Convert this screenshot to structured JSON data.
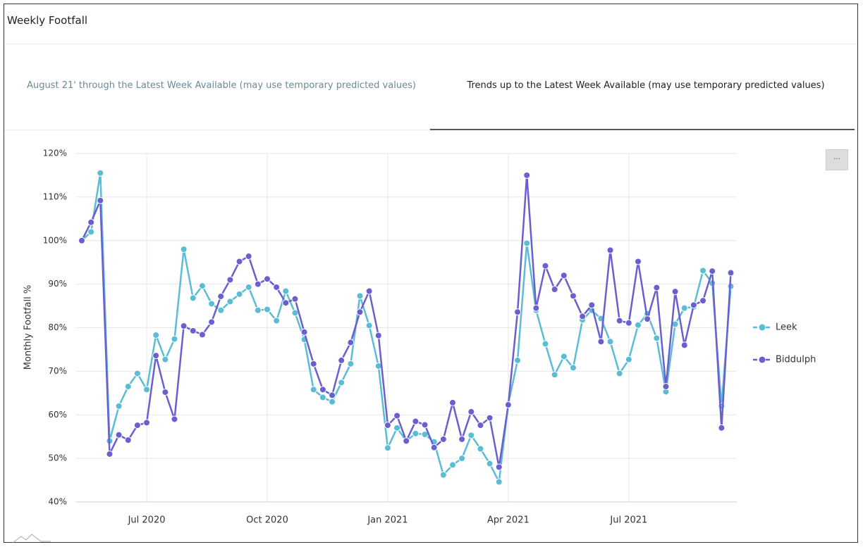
{
  "header": {
    "title": "Weekly Footfall"
  },
  "tabs": [
    {
      "label": "August 21' through the Latest Week Available (may use temporary predicted values)"
    },
    {
      "label": "Trends up to the Latest Week Available (may use temporary predicted values)"
    }
  ],
  "menu": {
    "label": "..."
  },
  "chart_data": {
    "type": "line",
    "y_label": "Monthly Footfall %",
    "categories": [
      null,
      null,
      null,
      null,
      null,
      null,
      null,
      "Jul 2020",
      null,
      null,
      null,
      null,
      null,
      null,
      null,
      null,
      null,
      null,
      null,
      null,
      "Oct 2020",
      null,
      null,
      null,
      null,
      null,
      null,
      null,
      null,
      null,
      null,
      null,
      null,
      "Jan 2021",
      null,
      null,
      null,
      null,
      null,
      null,
      null,
      null,
      null,
      null,
      null,
      null,
      "Apr 2021",
      null,
      null,
      null,
      null,
      null,
      null,
      null,
      null,
      null,
      null,
      null,
      null,
      "Jul 2021",
      null,
      null,
      null,
      null,
      null,
      null,
      null,
      null,
      null,
      null,
      null
    ],
    "series": [
      {
        "name": "Leek",
        "color": "#5bbcd6",
        "values": [
          100,
          102,
          115.5,
          54,
          62,
          66.5,
          69.5,
          65.8,
          78.3,
          72.7,
          77.4,
          98,
          86.8,
          89.6,
          85.5,
          84,
          86,
          87.7,
          89.3,
          84,
          84.2,
          81.6,
          88.4,
          83.4,
          77.3,
          65.8,
          64,
          63,
          67.4,
          71.7,
          87.3,
          80.5,
          71.2,
          52.4,
          57,
          54,
          55.7,
          55.5,
          53.8,
          46.2,
          48.5,
          50,
          55.3,
          52.2,
          48.8,
          44.6,
          62.5,
          72.5,
          99.4,
          84,
          76.3,
          69.2,
          73.4,
          70.8,
          81.8,
          84,
          82.1,
          76.8,
          69.5,
          72.7,
          80.6,
          83.2,
          77.6,
          65.3,
          80.8,
          84.5,
          84.8,
          93.1,
          90.2,
          62,
          89.5
        ]
      },
      {
        "name": "Biddulph",
        "color": "#6a5fcf",
        "values": [
          100,
          104.2,
          109.2,
          51,
          55.4,
          54.2,
          57.6,
          58.2,
          73.6,
          65.2,
          59,
          80.4,
          79.3,
          78.4,
          81.3,
          87.2,
          91,
          95.2,
          96.4,
          90,
          91.2,
          89.3,
          85.7,
          86.6,
          79,
          71.7,
          65.8,
          64.5,
          72.5,
          76.6,
          83.6,
          88.4,
          78.2,
          57.6,
          59.8,
          54,
          58.5,
          57.7,
          52.5,
          54.4,
          62.8,
          54.4,
          60.7,
          57.6,
          59.3,
          48,
          62.3,
          83.6,
          115,
          84.5,
          94.2,
          88.8,
          92,
          87.3,
          82.6,
          85.2,
          76.8,
          97.8,
          81.6,
          81.1,
          95.2,
          82,
          89.2,
          66.5,
          88.3,
          76,
          85.2,
          86.2,
          93,
          57,
          92.6
        ]
      }
    ],
    "ylim": [
      40,
      120
    ],
    "yticks": [
      {
        "value": 40,
        "label": "40%"
      },
      {
        "value": 50,
        "label": "50%"
      },
      {
        "value": 60,
        "label": "60%"
      },
      {
        "value": 70,
        "label": "70%"
      },
      {
        "value": 80,
        "label": "80%"
      },
      {
        "value": 90,
        "label": "90%"
      },
      {
        "value": 100,
        "label": "100%"
      },
      {
        "value": 110,
        "label": "110%"
      },
      {
        "value": 120,
        "label": "120%"
      }
    ],
    "grid": true,
    "legend": "right"
  }
}
